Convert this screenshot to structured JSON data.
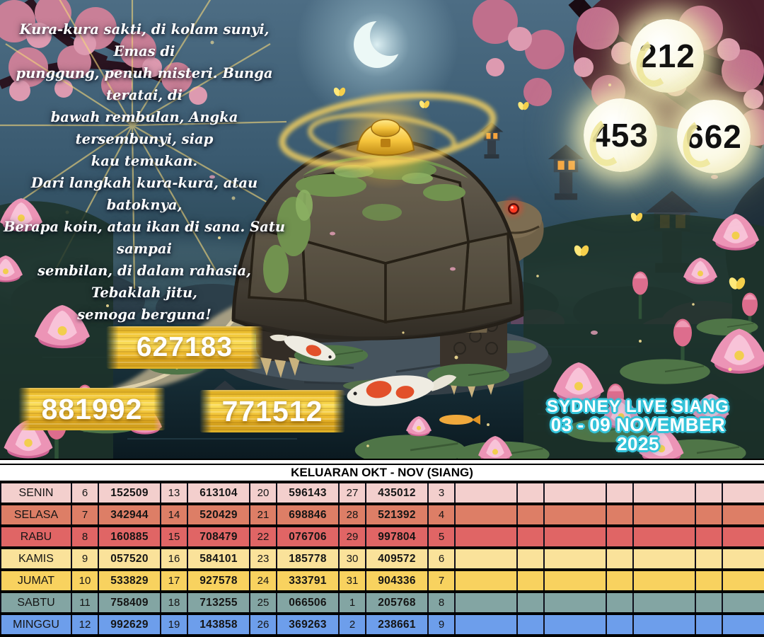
{
  "poem": {
    "lines": [
      "Kura-kura sakti, di kolam sunyi, Emas di",
      "punggung, penuh misteri. Bunga teratai, di",
      "bawah rembulan, Angka tersembunyi, siap",
      "kau temukan.",
      "Dari langkah kura-kura, atau batoknya,",
      "Berapa koin, atau ikan di sana. Satu sampai",
      "sembilan, di dalam rahasia, Tebaklah jitu,",
      "semoga berguna!"
    ]
  },
  "circles": [
    {
      "value": "212"
    },
    {
      "value": "453"
    },
    {
      "value": "662"
    }
  ],
  "banners": [
    {
      "value": "627183"
    },
    {
      "value": "881992"
    },
    {
      "value": "771512"
    }
  ],
  "market": {
    "line1": "SYDNEY LIVE SIANG",
    "line2": "03 - 09 NOVEMBER 2025"
  },
  "table": {
    "header": "KELUARAN OKT - NOV (SIANG)",
    "rows": [
      {
        "day": "SENIN",
        "color": "#f3cfcd",
        "cells": [
          "6",
          "152509",
          "13",
          "613104",
          "20",
          "596143",
          "27",
          "435012",
          "3",
          "",
          "",
          "",
          "",
          "",
          "",
          ""
        ]
      },
      {
        "day": "SELASA",
        "color": "#dd7e66",
        "cells": [
          "7",
          "342944",
          "14",
          "520429",
          "21",
          "698846",
          "28",
          "521392",
          "4",
          "",
          "",
          "",
          "",
          "",
          "",
          ""
        ]
      },
      {
        "day": "RABU",
        "color": "#e06565",
        "cells": [
          "8",
          "160885",
          "15",
          "708479",
          "22",
          "076706",
          "29",
          "997804",
          "5",
          "",
          "",
          "",
          "",
          "",
          "",
          ""
        ]
      },
      {
        "day": "KAMIS",
        "color": "#fae29a",
        "cells": [
          "9",
          "057520",
          "16",
          "584101",
          "23",
          "185778",
          "30",
          "409572",
          "6",
          "",
          "",
          "",
          "",
          "",
          "",
          ""
        ]
      },
      {
        "day": "JUMAT",
        "color": "#f8d25f",
        "cells": [
          "10",
          "533829",
          "17",
          "927578",
          "24",
          "333791",
          "31",
          "904336",
          "7",
          "",
          "",
          "",
          "",
          "",
          "",
          ""
        ]
      },
      {
        "day": "SABTU",
        "color": "#83a5a3",
        "cells": [
          "11",
          "758409",
          "18",
          "713255",
          "25",
          "066506",
          "1",
          "205768",
          "8",
          "",
          "",
          "",
          "",
          "",
          "",
          ""
        ]
      },
      {
        "day": "MINGGU",
        "color": "#6d9eeb",
        "cells": [
          "12",
          "992629",
          "19",
          "143858",
          "26",
          "369263",
          "2",
          "238661",
          "9",
          "",
          "",
          "",
          "",
          "",
          "",
          ""
        ]
      }
    ]
  },
  "icons": {
    "moon": "crescent-moon-icon",
    "turtle": "turtle-icon",
    "ingot": "gold-ingot-icon",
    "koi": "koi-fish-icon",
    "lotus": "lotus-flower-icon",
    "lantern": "stone-lantern-icon"
  },
  "colors": {
    "gold_banner": "#f2c22e",
    "cyan_outline": "#35c3d9",
    "circle_fill": "#faf7dd",
    "banner_text": "#ffffff",
    "table_border": "#000000"
  }
}
